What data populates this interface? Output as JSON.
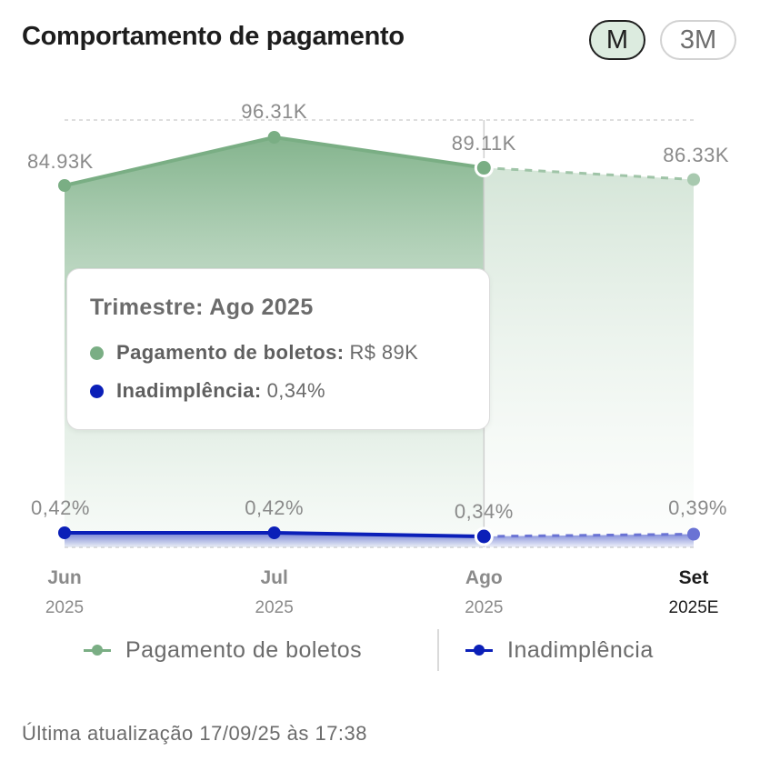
{
  "header": {
    "title": "Comportamento de pagamento",
    "toggles": [
      {
        "label": "M",
        "selected": true
      },
      {
        "label": "3M",
        "selected": false
      }
    ]
  },
  "colors": {
    "boletos": "#7aae84",
    "inadimplencia": "#0b1fb8",
    "toggle_selected_bg": "#dcebdf"
  },
  "chart_data": {
    "type": "line",
    "categories": [
      "Jun",
      "Jul",
      "Ago",
      "Set"
    ],
    "category_years": [
      "2025",
      "2025",
      "2025",
      "2025E"
    ],
    "highlighted_category": "Set",
    "projected_from": "Ago",
    "series": [
      {
        "name": "Pagamento de boletos",
        "values": [
          84930,
          96310,
          89110,
          86330
        ],
        "labels": [
          "84.93K",
          "96.31K",
          "89.11K",
          "86.33K"
        ],
        "style": "area"
      },
      {
        "name": "Inadimplência",
        "values": [
          0.42,
          0.42,
          0.34,
          0.39
        ],
        "labels": [
          "0,42%",
          "0,42%",
          "0,34%",
          "0,39%"
        ],
        "style": "line"
      }
    ]
  },
  "tooltip": {
    "title": "Trimestre: Ago 2025",
    "rows": [
      {
        "label": "Pagamento de boletos:",
        "value": "R$ 89K"
      },
      {
        "label": "Inadimplência:",
        "value": "0,34%"
      }
    ]
  },
  "legend": {
    "items": [
      "Pagamento de boletos",
      "Inadimplência"
    ]
  },
  "footer": {
    "updated": "Última atualização 17/09/25 às 17:38"
  }
}
